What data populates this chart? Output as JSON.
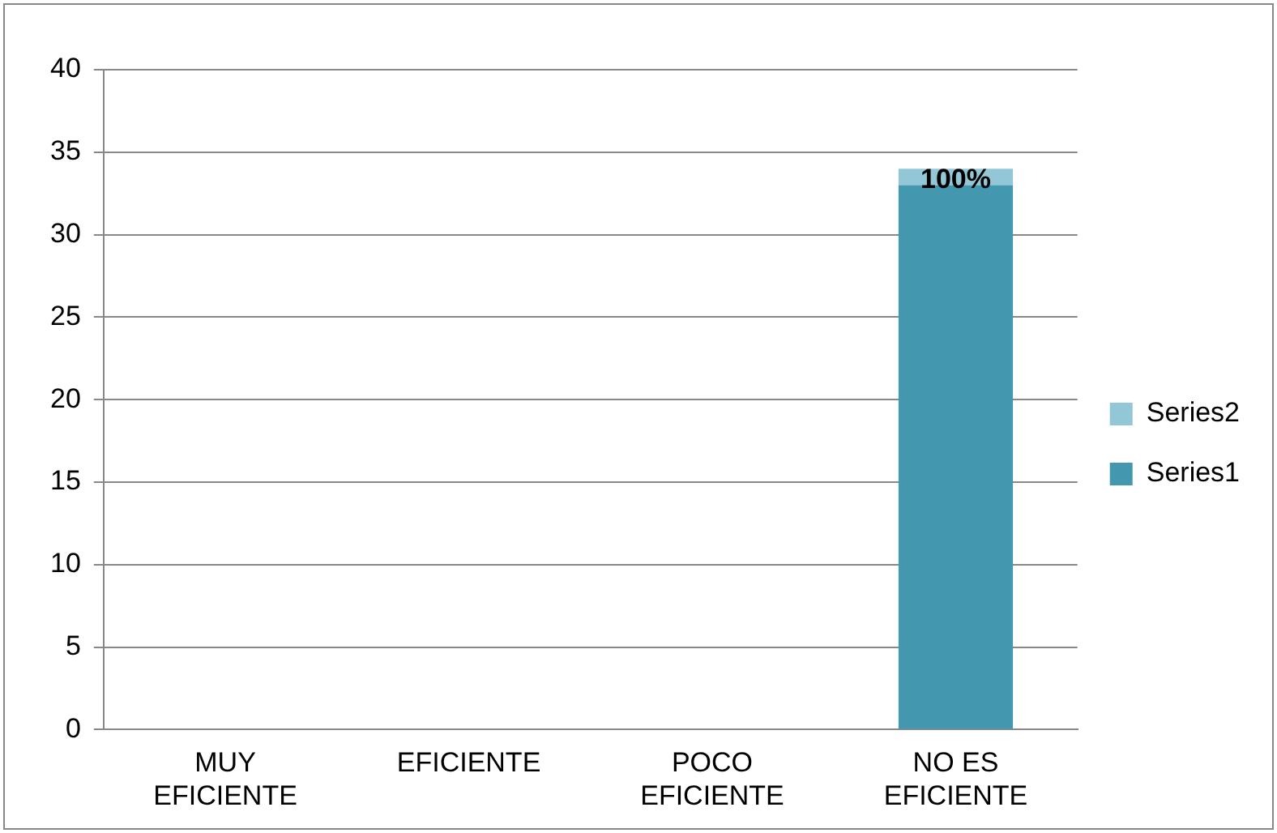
{
  "chart_data": {
    "type": "bar",
    "stacked": true,
    "categories": [
      "MUY EFICIENTE",
      "EFICIENTE",
      "POCO EFICIENTE",
      "NO ES EFICIENTE"
    ],
    "series": [
      {
        "name": "Series1",
        "color": "#4398b0",
        "values": [
          0,
          0,
          0,
          33
        ]
      },
      {
        "name": "Series2",
        "color": "#93c6d6",
        "values": [
          0,
          0,
          0,
          1
        ],
        "value_labels": [
          null,
          null,
          null,
          "100%"
        ]
      }
    ],
    "ylim": [
      0,
      40
    ],
    "yticks": [
      0,
      5,
      10,
      15,
      20,
      25,
      30,
      35,
      40
    ],
    "grid": "y",
    "legend": "right"
  }
}
